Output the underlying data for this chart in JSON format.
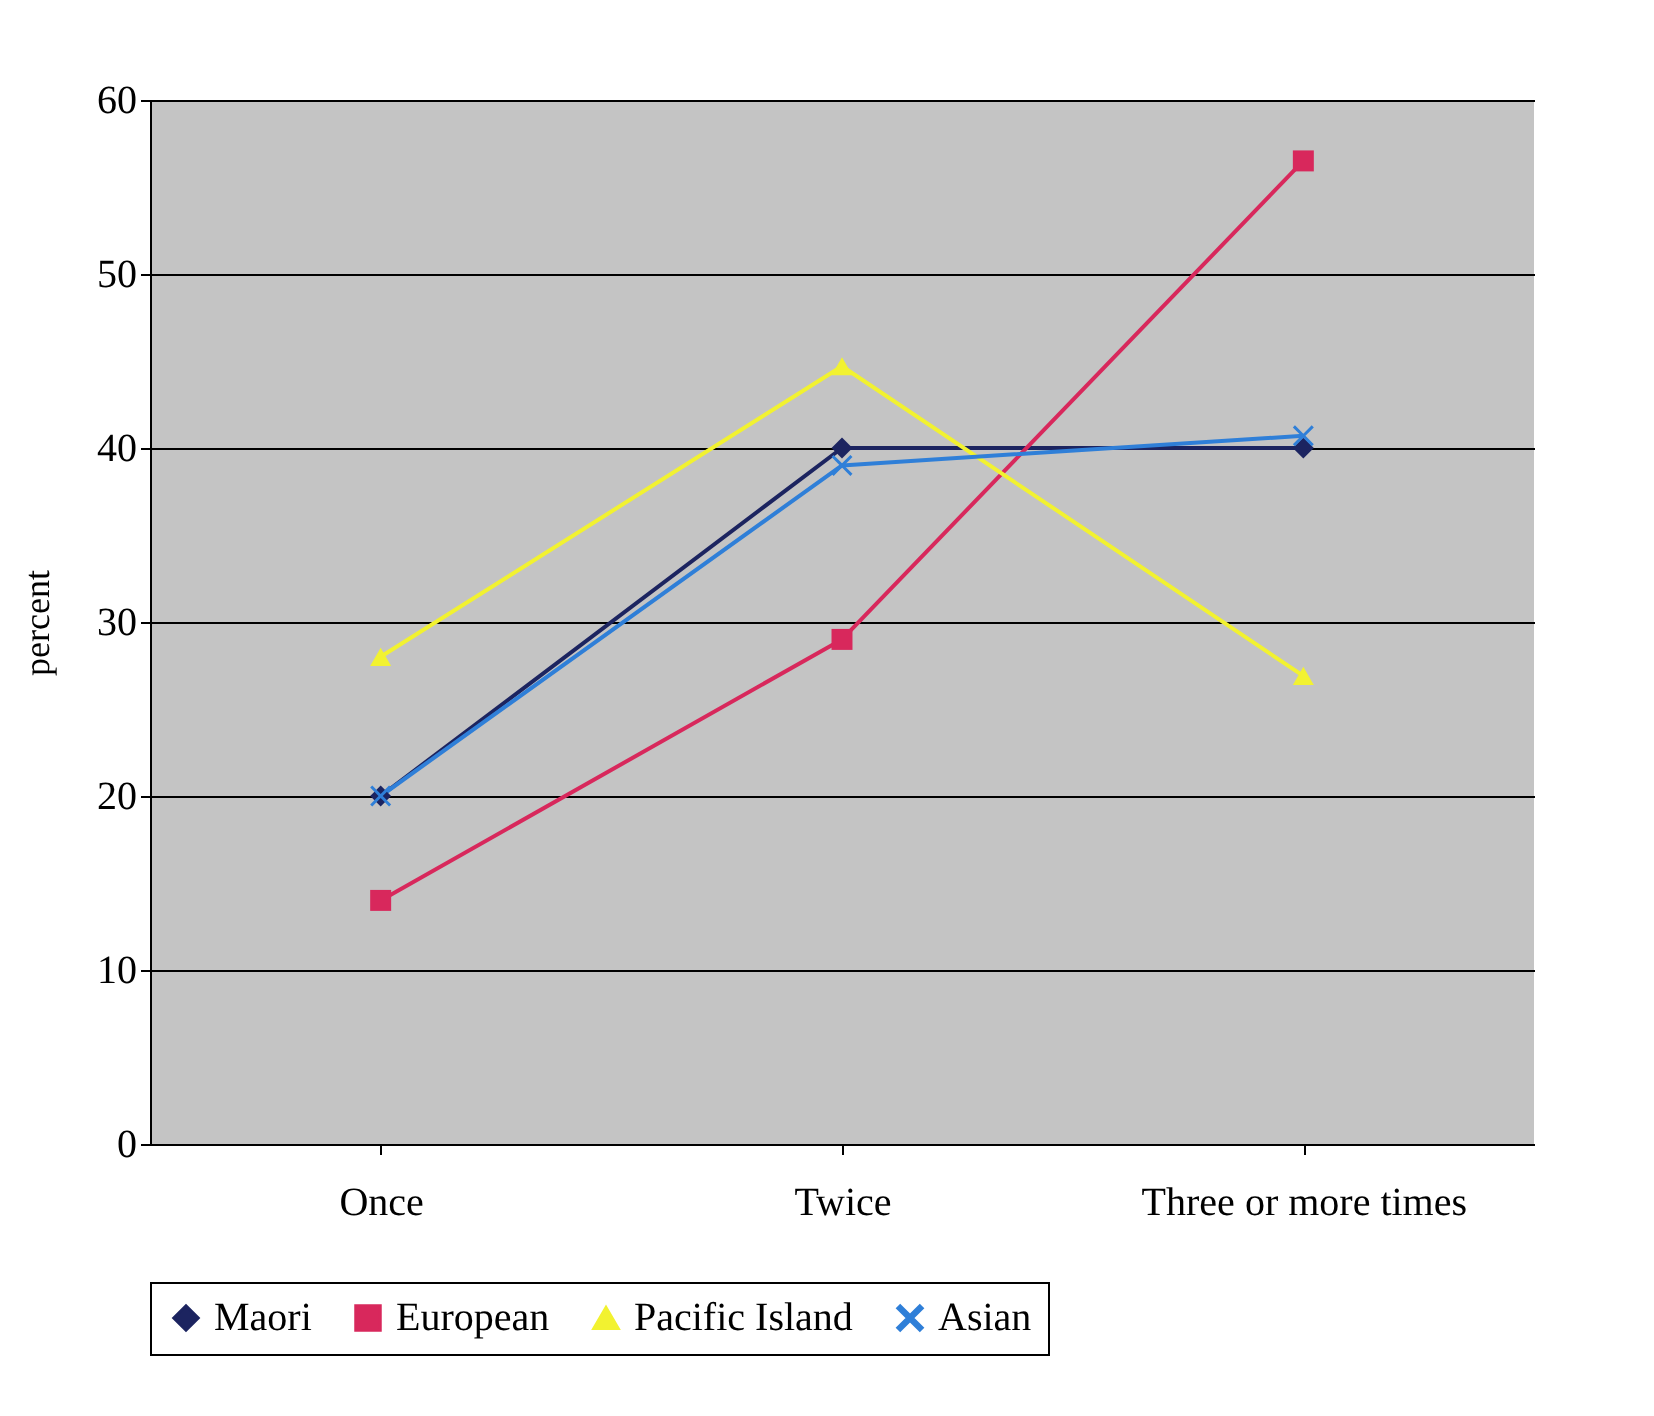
{
  "chart_data": {
    "type": "line",
    "ylabel": "percent",
    "categories": [
      "Once",
      "Twice",
      "Three or more times"
    ],
    "series": [
      {
        "name": "Maori",
        "color": "#1c2460",
        "marker": "diamond",
        "values": [
          20,
          40,
          40
        ]
      },
      {
        "name": "European",
        "color": "#d8285c",
        "marker": "square",
        "values": [
          14,
          29,
          56.5
        ]
      },
      {
        "name": "Pacific Island",
        "color": "#f2f230",
        "marker": "triangle",
        "values": [
          28,
          44.7,
          26.9
        ]
      },
      {
        "name": "Asian",
        "color": "#2f7fd8",
        "marker": "cross",
        "values": [
          20,
          39,
          40.7
        ]
      }
    ],
    "ylim": [
      0,
      60
    ],
    "yticks": [
      0,
      10,
      20,
      30,
      40,
      50,
      60
    ],
    "grid": "y",
    "legend": "bottom",
    "line_style": "solid"
  }
}
